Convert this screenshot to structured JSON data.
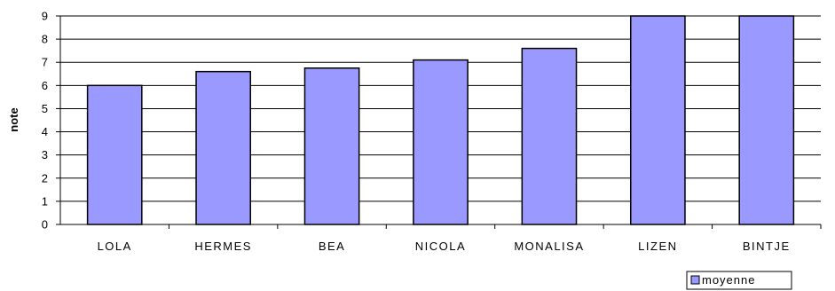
{
  "chart_data": {
    "type": "bar",
    "categories": [
      "LOLA",
      "HERMES",
      "BEA",
      "NICOLA",
      "MONALISA",
      "LIZEN",
      "BINTJE"
    ],
    "series": [
      {
        "name": "moyenne",
        "values": [
          6.0,
          6.6,
          6.75,
          7.1,
          7.6,
          9.0,
          9.0
        ],
        "color": "#9999ff"
      }
    ],
    "xlabel": "",
    "ylabel": "note",
    "ylim": [
      0,
      9
    ],
    "yticks": [
      0,
      1,
      2,
      3,
      4,
      5,
      6,
      7,
      8,
      9
    ],
    "grid": true,
    "legend_position": "bottom-right"
  }
}
